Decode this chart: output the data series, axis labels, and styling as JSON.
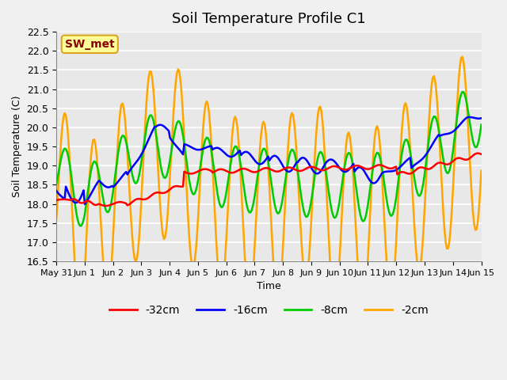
{
  "title": "Soil Temperature Profile C1",
  "xlabel": "Time",
  "ylabel": "Soil Temperature (C)",
  "ylim": [
    16.5,
    22.5
  ],
  "n_days": 15,
  "annotation_text": "SW_met",
  "annotation_color": "#8B0000",
  "annotation_bg": "#FFFF99",
  "annotation_border": "#DAA520",
  "bg_color": "#E8E8E8",
  "grid_color": "#FFFFFF",
  "series": {
    "-32cm": {
      "color": "#FF0000",
      "linewidth": 1.8
    },
    "-16cm": {
      "color": "#0000FF",
      "linewidth": 1.8
    },
    "-8cm": {
      "color": "#00CC00",
      "linewidth": 1.8
    },
    "-2cm": {
      "color": "#FFA500",
      "linewidth": 1.8
    }
  },
  "xtick_labels": [
    "May 31",
    "Jun 1",
    "Jun 2",
    "Jun 3",
    "Jun 4",
    "Jun 5",
    "Jun 6",
    "Jun 7",
    "Jun 8",
    "Jun 9",
    "Jun 10",
    "Jun 11",
    "Jun 12",
    "Jun 13",
    "Jun 14",
    "Jun 15"
  ],
  "ytick_vals": [
    16.5,
    17.0,
    17.5,
    18.0,
    18.5,
    19.0,
    19.5,
    20.0,
    20.5,
    21.0,
    21.5,
    22.0,
    22.5
  ],
  "data_points_per_day": 24
}
